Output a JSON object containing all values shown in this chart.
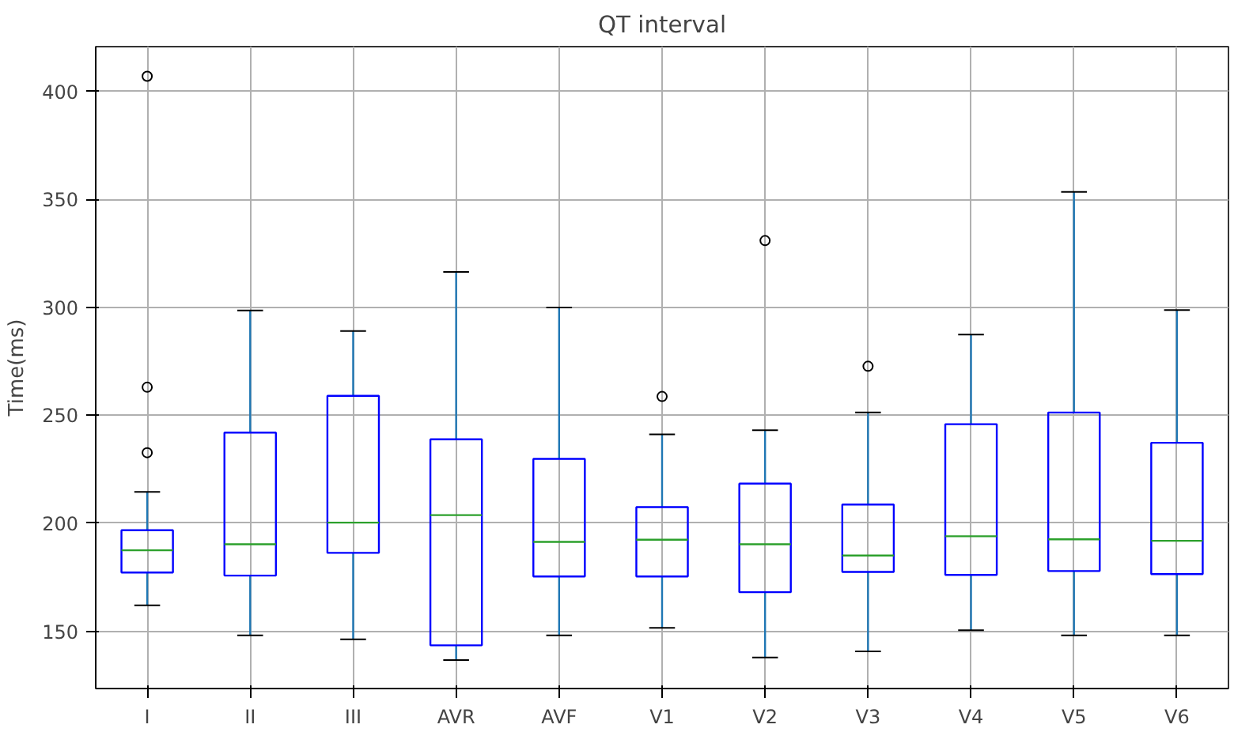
{
  "chart_data": {
    "type": "box",
    "title": "QT interval",
    "ylabel": "Time(ms)",
    "categories": [
      "I",
      "II",
      "III",
      "AVR",
      "AVF",
      "V1",
      "V2",
      "V3",
      "V4",
      "V5",
      "V6"
    ],
    "ylim": [
      123.5,
      420.7
    ],
    "yticks": [
      150,
      200,
      250,
      300,
      350,
      400
    ],
    "grid": true,
    "series": [
      {
        "color": "#0000ff",
        "boxes": [
          {
            "low": 162,
            "q1": 177.2,
            "median": 187.5,
            "q3": 196.8,
            "high": 214.5,
            "outliers": [
              407,
              263,
              232.7
            ]
          },
          {
            "low": 148.1,
            "q1": 175.8,
            "median": 190.3,
            "q3": 242,
            "high": 298.5
          },
          {
            "low": 146.3,
            "q1": 186.3,
            "median": 200.3,
            "q3": 259,
            "high": 289
          },
          {
            "low": 136.7,
            "q1": 143.5,
            "median": 203.8,
            "q3": 238.9,
            "high": 316.4
          },
          {
            "low": 148.1,
            "q1": 175.4,
            "median": 191.4,
            "q3": 229.8,
            "high": 299.9
          },
          {
            "low": 151.6,
            "q1": 175.4,
            "median": 192.4,
            "q3": 207.5,
            "high": 241.2,
            "outliers": [
              258.7
            ]
          },
          {
            "low": 137.9,
            "q1": 168.1,
            "median": 190.3,
            "q3": 218.4,
            "high": 243.1,
            "outliers": [
              330.9
            ]
          },
          {
            "low": 140.7,
            "q1": 177.5,
            "median": 185.1,
            "q3": 208.7,
            "high": 251.3,
            "outliers": [
              272.7
            ]
          },
          {
            "low": 150.5,
            "q1": 176.1,
            "median": 194,
            "q3": 245.9,
            "high": 287.4
          },
          {
            "low": 148.1,
            "q1": 177.9,
            "median": 192.6,
            "q3": 251.3,
            "high": 353.4
          },
          {
            "low": 148.1,
            "q1": 176.5,
            "median": 191.9,
            "q3": 237.3,
            "high": 298.7
          }
        ]
      }
    ]
  }
}
